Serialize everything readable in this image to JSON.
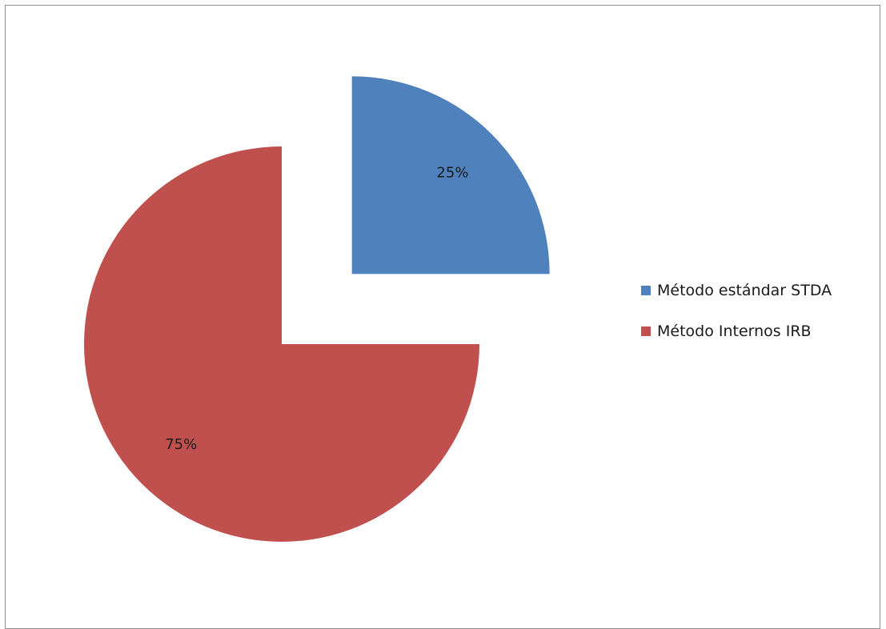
{
  "chart_data": {
    "type": "pie",
    "categories": [
      "Método estándar STDA",
      "Método Internos IRB"
    ],
    "values": [
      25,
      75
    ],
    "data_labels": [
      "25%",
      "75%"
    ],
    "colors": [
      "#4f81bd",
      "#c0504d"
    ],
    "exploded": [
      true,
      false
    ],
    "start_angle_deg": 0,
    "direction": "clockwise",
    "legend": {
      "position": "right",
      "items": [
        {
          "label": "Método estándar STDA",
          "color": "#4f81bd"
        },
        {
          "label": "Método Internos IRB",
          "color": "#c0504d"
        }
      ]
    },
    "title": "",
    "grid": false
  }
}
